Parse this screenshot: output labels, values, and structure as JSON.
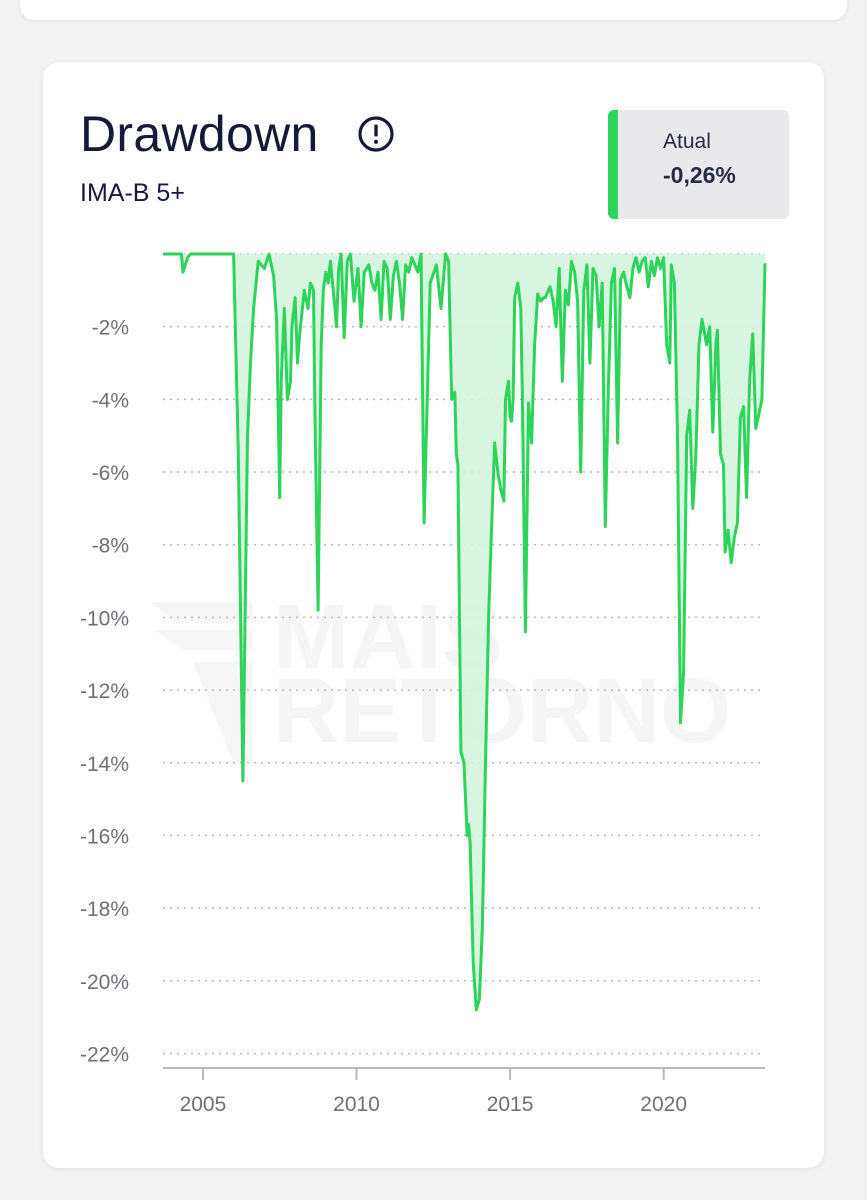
{
  "card": {
    "title": "Drawdown",
    "subtitle": "IMA-B 5+",
    "current_label": "Atual",
    "current_value": "-0,26%",
    "accent_color": "#2ed35a",
    "icon": "info-icon"
  },
  "watermark": {
    "line1": "MAIS",
    "line2": "RETORNO"
  },
  "chart_data": {
    "type": "area",
    "title": "Drawdown",
    "subtitle": "IMA-B 5+",
    "xlabel": "",
    "ylabel": "",
    "xlim": [
      2003.7,
      2023.3
    ],
    "ylim": [
      -22.4,
      0
    ],
    "x_ticks": [
      2005,
      2010,
      2015,
      2020
    ],
    "x_tick_labels": [
      "2005",
      "2010",
      "2015",
      "2020"
    ],
    "y_ticks": [
      -2,
      -4,
      -6,
      -8,
      -10,
      -12,
      -14,
      -16,
      -18,
      -20,
      -22
    ],
    "y_tick_labels": [
      "-2%",
      "-4%",
      "-6%",
      "-8%",
      "-10%",
      "-12%",
      "-14%",
      "-16%",
      "-18%",
      "-20%",
      "-22%"
    ],
    "grid": true,
    "line_color": "#2ed35a",
    "fill_color": "#d4f5dc",
    "series": [
      {
        "x": [
          2003.7,
          2004.3,
          2004.35,
          2004.5,
          2004.6,
          2005.0,
          2006.0,
          2006.15,
          2006.3,
          2006.45,
          2006.55,
          2006.65,
          2006.8,
          2007.0,
          2007.15,
          2007.3,
          2007.4,
          2007.5,
          2007.55,
          2007.65,
          2007.75,
          2007.85,
          2007.9,
          2008.0,
          2008.08,
          2008.15,
          2008.3,
          2008.42,
          2008.5,
          2008.6,
          2008.65,
          2008.75,
          2008.85,
          2008.92,
          2009.0,
          2009.08,
          2009.15,
          2009.3,
          2009.35,
          2009.42,
          2009.5,
          2009.6,
          2009.7,
          2009.8,
          2009.92,
          2010.05,
          2010.15,
          2010.25,
          2010.4,
          2010.5,
          2010.6,
          2010.7,
          2010.8,
          2010.9,
          2011.0,
          2011.1,
          2011.2,
          2011.3,
          2011.4,
          2011.5,
          2011.6,
          2011.7,
          2011.8,
          2011.9,
          2012.0,
          2012.1,
          2012.2,
          2012.4,
          2012.6,
          2012.75,
          2012.9,
          2013.0,
          2013.1,
          2013.2,
          2013.25,
          2013.3,
          2013.4,
          2013.5,
          2013.6,
          2013.65,
          2013.7,
          2013.8,
          2013.9,
          2014.0,
          2014.1,
          2014.2,
          2014.3,
          2014.4,
          2014.5,
          2014.6,
          2014.7,
          2014.8,
          2014.85,
          2014.95,
          2015.0,
          2015.05,
          2015.1,
          2015.15,
          2015.25,
          2015.35,
          2015.4,
          2015.5,
          2015.6,
          2015.7,
          2015.8,
          2015.85,
          2015.9,
          2016.0,
          2016.1,
          2016.15,
          2016.3,
          2016.4,
          2016.5,
          2016.6,
          2016.7,
          2016.8,
          2016.9,
          2017.0,
          2017.1,
          2017.2,
          2017.3,
          2017.4,
          2017.5,
          2017.6,
          2017.7,
          2017.8,
          2017.9,
          2018.0,
          2018.1,
          2018.2,
          2018.3,
          2018.4,
          2018.5,
          2018.6,
          2018.7,
          2018.8,
          2018.9,
          2019.0,
          2019.1,
          2019.2,
          2019.3,
          2019.4,
          2019.5,
          2019.6,
          2019.7,
          2019.8,
          2019.9,
          2020.0,
          2020.1,
          2020.2,
          2020.25,
          2020.35,
          2020.45,
          2020.55,
          2020.65,
          2020.75,
          2020.85,
          2020.95,
          2021.05,
          2021.15,
          2021.25,
          2021.4,
          2021.5,
          2021.6,
          2021.7,
          2021.75,
          2021.85,
          2021.95,
          2022.0,
          2022.1,
          2022.2,
          2022.3,
          2022.4,
          2022.5,
          2022.6,
          2022.7,
          2022.8,
          2022.9,
          2023.0,
          2023.1,
          2023.2,
          2023.3
        ],
        "values": [
          0,
          0,
          -0.5,
          -0.1,
          0,
          0,
          0,
          -5.5,
          -14.5,
          -5,
          -3,
          -1.5,
          -0.2,
          -0.4,
          0,
          -0.6,
          -1.8,
          -6.7,
          -3.5,
          -1.5,
          -4,
          -3.5,
          -2,
          -1.2,
          -3,
          -2.2,
          -1,
          -1.5,
          -0.8,
          -1,
          -4.5,
          -9.8,
          -2.5,
          -1,
          -0.5,
          -0.8,
          -0.2,
          -1.5,
          -2,
          -0.4,
          0,
          -2.3,
          -0.2,
          0,
          -1.3,
          -0.4,
          -2,
          -0.5,
          -0.3,
          -0.8,
          -1,
          -0.5,
          -1.8,
          -0.2,
          -0.4,
          -1.8,
          -0.6,
          -0.2,
          -0.8,
          -1.8,
          -0.3,
          -0.5,
          -0.1,
          -0.3,
          -0.5,
          0,
          -7.4,
          -0.8,
          -0.3,
          -1.5,
          0,
          -0.2,
          -4,
          -3.8,
          -5.5,
          -5.8,
          -13.7,
          -14,
          -16,
          -15.7,
          -16.2,
          -19.5,
          -20.8,
          -20.5,
          -18.5,
          -14,
          -10,
          -7.5,
          -5.2,
          -6,
          -6.5,
          -6.8,
          -4,
          -3.5,
          -4.5,
          -4.6,
          -4,
          -1.2,
          -0.8,
          -1.5,
          -4,
          -10.4,
          -4.1,
          -5.2,
          -2.5,
          -1.8,
          -1.1,
          -1.3,
          -1.2,
          -1.2,
          -0.9,
          -1.3,
          -2,
          -0.4,
          -3.5,
          -1,
          -1.4,
          -0.2,
          -0.5,
          -1.3,
          -6,
          -1,
          -0.3,
          -3,
          -0.4,
          -0.6,
          -2,
          -0.8,
          -7.5,
          -3.7,
          -0.8,
          -0.4,
          -5.2,
          -0.7,
          -0.5,
          -0.9,
          -1.2,
          -0.4,
          -0.1,
          -0.5,
          -0.2,
          -0.1,
          -0.9,
          -0.2,
          -0.6,
          -0.1,
          -0.4,
          -0.1,
          -2.5,
          -3,
          -0.3,
          -0.8,
          -5,
          -12.9,
          -11.5,
          -5,
          -4.3,
          -7,
          -5.5,
          -2.5,
          -1.8,
          -2.5,
          -2,
          -4.9,
          -2.5,
          -2.1,
          -5.5,
          -5.8,
          -8.2,
          -7.6,
          -8.5,
          -7.8,
          -7.4,
          -4.5,
          -4.2,
          -6.7,
          -3.5,
          -2.2,
          -4.8,
          -4.4,
          -4,
          -0.26
        ]
      }
    ]
  }
}
